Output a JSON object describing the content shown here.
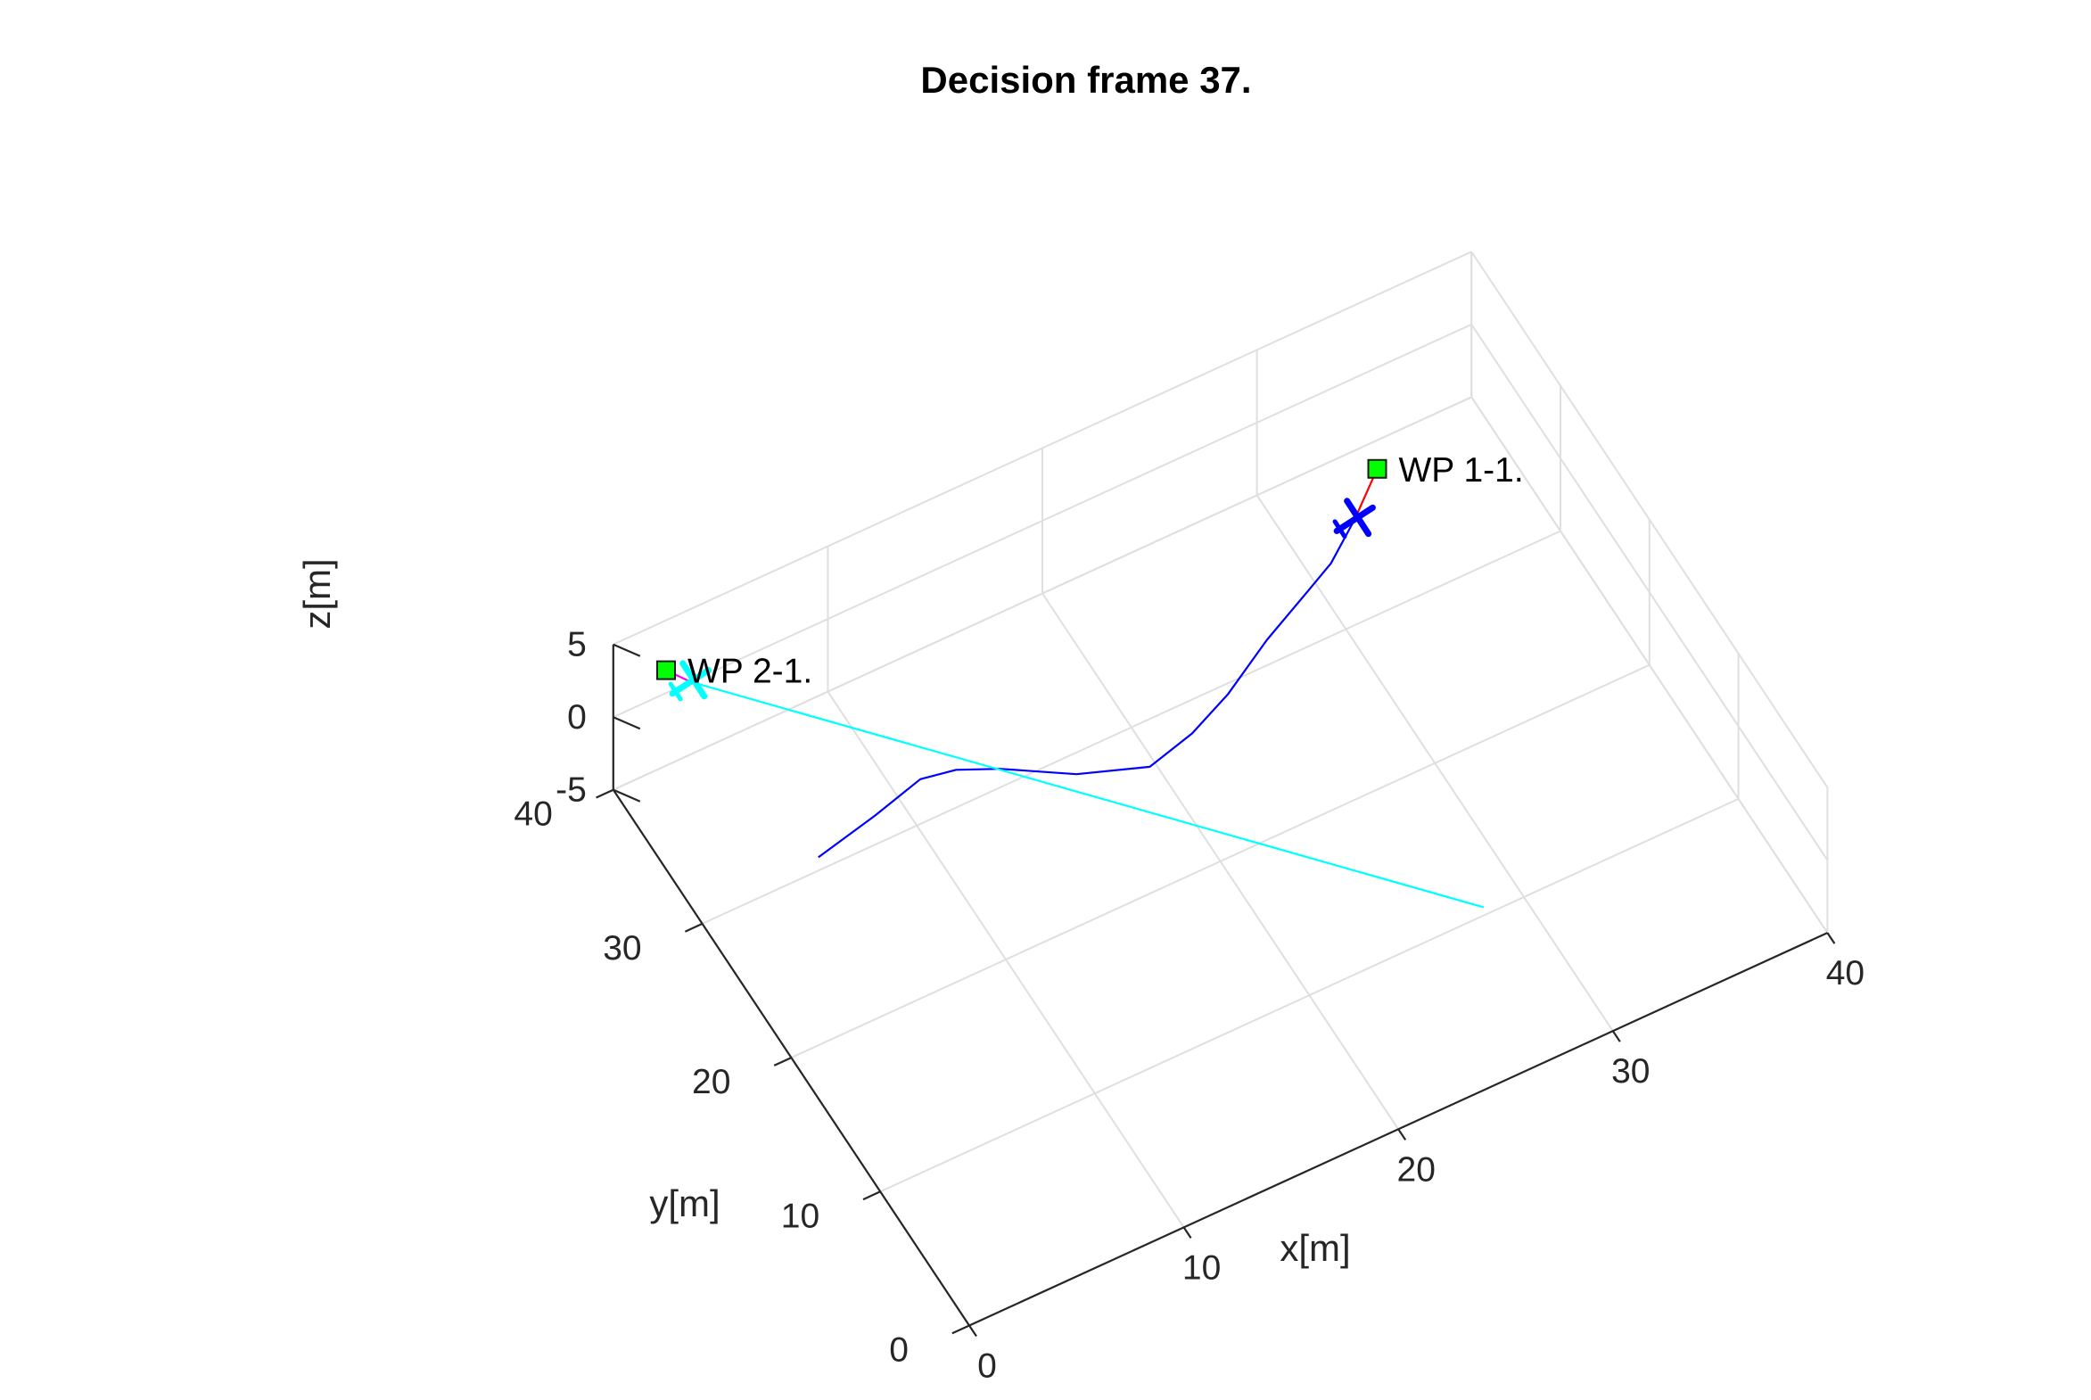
{
  "chart_data": {
    "type": "line",
    "title": "Decision frame 37.",
    "xlabel": "x[m]",
    "ylabel": "y[m]",
    "zlabel": "z[m]",
    "xlim": [
      0,
      40
    ],
    "ylim": [
      0,
      40
    ],
    "zlim": [
      -5,
      5
    ],
    "x_ticks": [
      "0",
      "10",
      "20",
      "30",
      "40"
    ],
    "y_ticks": [
      "0",
      "10",
      "20",
      "30",
      "40"
    ],
    "z_ticks": [
      "-5",
      "0",
      "5"
    ],
    "grid": true,
    "series": [
      {
        "color": "#0000ff",
        "x": [
          4.0,
          7.0,
          9.5,
          11.0,
          12.6,
          15.2,
          18.0,
          20.3,
          22.5,
          25.2,
          27.8,
          29.3,
          31.2
        ],
        "y": [
          26.6,
          27.5,
          28.4,
          28.0,
          26.9,
          24.6,
          23.1,
          23.9,
          25.2,
          27.3,
          29.0,
          30.0,
          31.9
        ],
        "z": [
          0,
          0,
          0,
          0,
          0,
          0,
          0,
          0,
          0,
          0,
          0,
          0,
          0
        ]
      },
      {
        "color": "#00ffff",
        "x": [
          26.6,
          3.6
        ],
        "y": [
          6.3,
          40.0
        ],
        "z": [
          0,
          0
        ]
      },
      {
        "color": "#ff0000",
        "x": [
          31.2,
          33.2
        ],
        "y": [
          31.9,
          34.2
        ],
        "z": [
          0,
          0
        ]
      },
      {
        "color": "#ff00ff",
        "x": [
          3.6,
          3.0
        ],
        "y": [
          40.0,
          41.3
        ],
        "z": [
          0,
          0
        ]
      }
    ],
    "waypoints": [
      {
        "label": "WP 1-1.",
        "x": 33.2,
        "y": 34.2,
        "z": 0,
        "color": "#00ff00"
      },
      {
        "label": "WP 2-1.",
        "x": 3.0,
        "y": 41.3,
        "z": 0,
        "color": "#00ff00"
      }
    ],
    "aircraft": [
      {
        "x": 31.2,
        "y": 31.9,
        "z": 0,
        "color": "#0000ff"
      },
      {
        "x": 3.6,
        "y": 40.0,
        "z": 0,
        "color": "#00ffff"
      }
    ]
  }
}
